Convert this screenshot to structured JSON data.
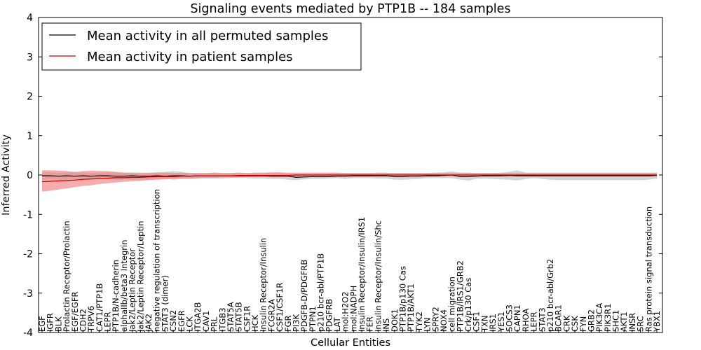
{
  "chart_data": {
    "type": "line",
    "title": "Signaling events mediated by PTP1B -- 184 samples",
    "xlabel": "Cellular Entities",
    "ylabel": "Inferred Activity",
    "ylim": [
      -4,
      4
    ],
    "yticks": [
      "-4",
      "-3",
      "-2",
      "-1",
      "0",
      "1",
      "2",
      "3",
      "4"
    ],
    "ytick_values": [
      -4,
      -3,
      -2,
      -1,
      0,
      1,
      2,
      3,
      4
    ],
    "legend_position": "upper-left",
    "categories": [
      "EGF",
      "IGFR",
      "BLK",
      "Prolactin Receptor/Prolactin",
      "EGF/EGFR",
      "CDH2",
      "TRPV6",
      "CAT1/PTP1B",
      "LEPR",
      "PTP1B/N-cadherin",
      "alphaIIb/beta3 Integrin",
      "Jak2/Leptin Receptor",
      "Jak2/Leptin Receptor/Leptin",
      "JAK2",
      "negative regulation of transcription",
      "STAT3 (dimer)",
      "CSN2",
      "EGFR",
      "LCK",
      "ITGA2B",
      "CAV1",
      "PRL",
      "ITGB3",
      "STAT5A",
      "STAT5B",
      "CSF1R",
      "HCK",
      "Insulin Receptor/Insulin",
      "FCGR2A",
      "CSF1/CSF1R",
      "FGR",
      "PI3K",
      "PDGFB-D/PDGFRB",
      "PTPN1",
      "p210 bcr-abl/PTP1B",
      "PDGFRB",
      "LAT",
      "mol:H2O2",
      "mol:NADPH",
      "Insulin Receptor/Insulin/IRS1",
      "FER",
      "Insulin Receptor/Insulin/Shc",
      "INS",
      "DOK1",
      "PTP1B/p130 Cas",
      "PTP1B/AKT1",
      "TYK2",
      "LYN",
      "SPRY2",
      "NOX4",
      "cell migration",
      "PTP1B/IRS1/GRB2",
      "Crk/p130 Cas",
      "CSF1",
      "TXN",
      "IRS1",
      "YES1",
      "SOCS3",
      "CAPN1",
      "RHOA",
      "LEPR",
      "STAT3",
      "p210 bcr-abl/Grb2",
      "BCAR1",
      "CRK",
      "CSK",
      "FYN",
      "GRB2",
      "PIK3CA",
      "PIK3R1",
      "SHC1",
      "AKT1",
      "INSR",
      "SRC",
      "Ras protein signal transduction",
      "YBX1"
    ],
    "series": [
      {
        "name": "Mean activity in all permuted samples",
        "color": "#000000",
        "band_color": "#b0b0b0",
        "values": [
          -0.02,
          -0.02,
          -0.03,
          -0.02,
          -0.03,
          -0.02,
          -0.03,
          -0.02,
          -0.02,
          -0.03,
          -0.03,
          -0.02,
          -0.03,
          -0.03,
          -0.02,
          -0.03,
          -0.02,
          -0.02,
          -0.03,
          -0.02,
          -0.02,
          -0.02,
          -0.02,
          -0.02,
          -0.02,
          -0.02,
          -0.02,
          -0.02,
          -0.03,
          -0.03,
          -0.03,
          -0.06,
          -0.05,
          -0.04,
          -0.04,
          -0.04,
          -0.03,
          -0.03,
          -0.02,
          -0.02,
          -0.02,
          -0.02,
          -0.02,
          -0.04,
          -0.04,
          -0.03,
          -0.03,
          -0.02,
          -0.02,
          -0.01,
          0.0,
          -0.04,
          -0.04,
          -0.03,
          -0.02,
          -0.02,
          -0.02,
          -0.01,
          -0.02,
          -0.02,
          -0.02,
          -0.02,
          -0.02,
          -0.02,
          -0.02,
          -0.02,
          -0.02,
          -0.02,
          -0.02,
          -0.02,
          -0.02,
          -0.02,
          -0.02,
          -0.02,
          -0.02,
          -0.01
        ],
        "lower": [
          -0.12,
          -0.11,
          -0.12,
          -0.12,
          -0.12,
          -0.1,
          -0.12,
          -0.1,
          -0.11,
          -0.12,
          -0.11,
          -0.12,
          -0.12,
          -0.12,
          -0.11,
          -0.1,
          -0.12,
          -0.1,
          -0.1,
          -0.09,
          -0.09,
          -0.09,
          -0.09,
          -0.08,
          -0.08,
          -0.08,
          -0.09,
          -0.09,
          -0.1,
          -0.1,
          -0.12,
          -0.13,
          -0.11,
          -0.1,
          -0.1,
          -0.09,
          -0.08,
          -0.1,
          -0.08,
          -0.08,
          -0.08,
          -0.09,
          -0.09,
          -0.12,
          -0.12,
          -0.11,
          -0.1,
          -0.08,
          -0.08,
          -0.08,
          -0.08,
          -0.12,
          -0.14,
          -0.1,
          -0.09,
          -0.1,
          -0.11,
          -0.12,
          -0.14,
          -0.1,
          -0.08,
          -0.1,
          -0.12,
          -0.13,
          -0.13,
          -0.13,
          -0.13,
          -0.13,
          -0.13,
          -0.13,
          -0.13,
          -0.13,
          -0.13,
          -0.13,
          -0.12,
          -0.09
        ],
        "upper": [
          0.07,
          0.07,
          0.06,
          0.07,
          0.06,
          0.06,
          0.06,
          0.06,
          0.07,
          0.06,
          0.06,
          0.07,
          0.06,
          0.06,
          0.07,
          0.08,
          0.1,
          0.08,
          0.05,
          0.05,
          0.05,
          0.06,
          0.05,
          0.05,
          0.05,
          0.05,
          0.05,
          0.05,
          0.05,
          0.05,
          0.04,
          0.03,
          0.03,
          0.03,
          0.04,
          0.04,
          0.05,
          0.05,
          0.05,
          0.05,
          0.05,
          0.06,
          0.06,
          0.05,
          0.05,
          0.05,
          0.05,
          0.05,
          0.06,
          0.07,
          0.09,
          0.06,
          0.06,
          0.05,
          0.05,
          0.05,
          0.06,
          0.08,
          0.12,
          0.06,
          0.06,
          0.06,
          0.06,
          0.06,
          0.06,
          0.06,
          0.06,
          0.06,
          0.06,
          0.06,
          0.06,
          0.06,
          0.06,
          0.06,
          0.06,
          0.06
        ]
      },
      {
        "name": "Mean activity in patient samples",
        "color": "#cc0000",
        "band_color": "#f08080",
        "values": [
          -0.17,
          -0.16,
          -0.15,
          -0.14,
          -0.13,
          -0.11,
          -0.1,
          -0.09,
          -0.08,
          -0.07,
          -0.07,
          -0.06,
          -0.06,
          -0.05,
          -0.04,
          -0.04,
          -0.04,
          -0.03,
          -0.03,
          -0.02,
          -0.02,
          -0.02,
          -0.02,
          -0.02,
          -0.01,
          -0.01,
          -0.01,
          -0.01,
          -0.01,
          -0.01,
          -0.01,
          0.0,
          0.0,
          0.0,
          0.0,
          0.0,
          0.0,
          0.0,
          0.0,
          0.0,
          0.0,
          0.0,
          0.0,
          0.0,
          0.0,
          0.0,
          0.0,
          0.0,
          0.0,
          0.0,
          0.0,
          0.0,
          0.0,
          0.0,
          0.0,
          0.0,
          0.0,
          0.0,
          0.0,
          0.0,
          0.0,
          0.0,
          0.0,
          0.0,
          0.0,
          0.0,
          0.0,
          0.0,
          0.0,
          0.0,
          0.0,
          0.0,
          0.0,
          0.0,
          0.0,
          0.0
        ],
        "lower": [
          -0.42,
          -0.4,
          -0.37,
          -0.34,
          -0.31,
          -0.28,
          -0.26,
          -0.23,
          -0.21,
          -0.19,
          -0.17,
          -0.16,
          -0.15,
          -0.13,
          -0.12,
          -0.11,
          -0.1,
          -0.09,
          -0.09,
          -0.08,
          -0.07,
          -0.07,
          -0.06,
          -0.06,
          -0.06,
          -0.05,
          -0.05,
          -0.05,
          -0.05,
          -0.05,
          -0.05,
          -0.04,
          -0.04,
          -0.04,
          -0.04,
          -0.04,
          -0.04,
          -0.04,
          -0.04,
          -0.04,
          -0.04,
          -0.03,
          -0.03,
          -0.03,
          -0.03,
          -0.03,
          -0.03,
          -0.03,
          -0.03,
          -0.03,
          -0.03,
          -0.03,
          -0.03,
          -0.03,
          -0.03,
          -0.03,
          -0.03,
          -0.03,
          -0.03,
          -0.03,
          -0.03,
          -0.03,
          -0.03,
          -0.03,
          -0.03,
          -0.03,
          -0.03,
          -0.03,
          -0.03,
          -0.03,
          -0.03,
          -0.03,
          -0.03,
          -0.03,
          -0.03,
          -0.03
        ],
        "upper": [
          0.12,
          0.12,
          0.11,
          0.1,
          0.08,
          0.1,
          0.11,
          0.1,
          0.1,
          0.08,
          0.06,
          0.05,
          0.05,
          0.05,
          0.06,
          0.06,
          0.05,
          0.06,
          0.05,
          0.05,
          0.05,
          0.06,
          0.05,
          0.05,
          0.06,
          0.05,
          0.06,
          0.06,
          0.07,
          0.07,
          0.06,
          0.06,
          0.06,
          0.06,
          0.06,
          0.06,
          0.06,
          0.05,
          0.05,
          0.05,
          0.05,
          0.05,
          0.05,
          0.05,
          0.05,
          0.05,
          0.05,
          0.05,
          0.05,
          0.05,
          0.05,
          0.05,
          0.05,
          0.05,
          0.05,
          0.05,
          0.05,
          0.05,
          0.05,
          0.05,
          0.05,
          0.05,
          0.05,
          0.05,
          0.05,
          0.05,
          0.05,
          0.05,
          0.05,
          0.05,
          0.05,
          0.05,
          0.05,
          0.05,
          0.05,
          0.05
        ]
      }
    ]
  }
}
